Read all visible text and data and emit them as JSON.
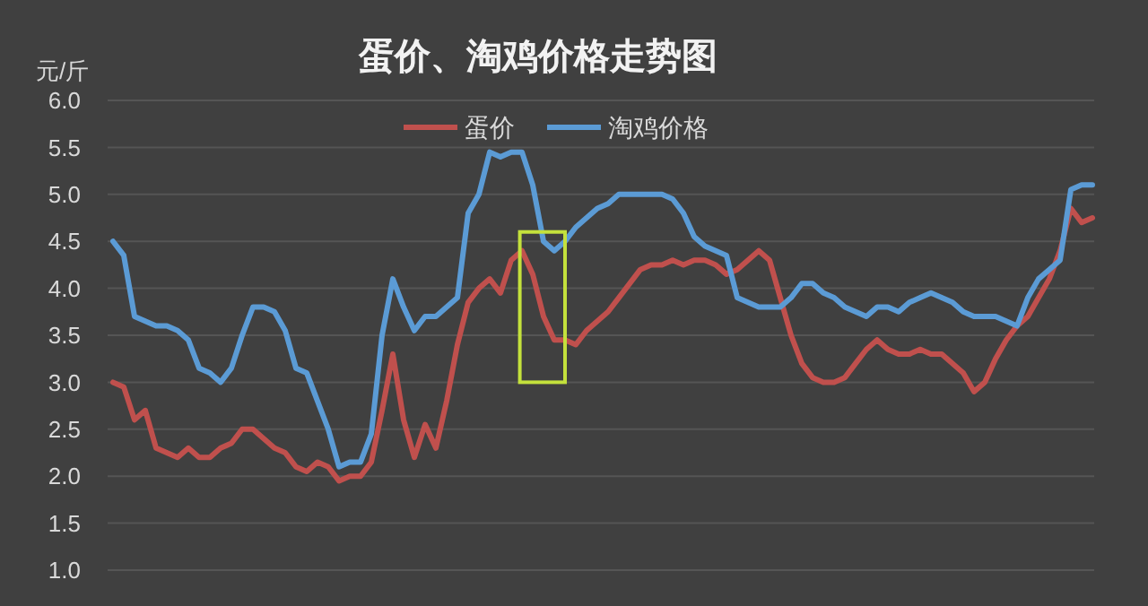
{
  "chart_data": {
    "type": "line",
    "title": "蛋价、淘鸡价格走势图",
    "ylabel": "元/斤",
    "categories": [
      null,
      null,
      null,
      null,
      null,
      null,
      null,
      null,
      null,
      null,
      null,
      null,
      null,
      null,
      null,
      null,
      null,
      null,
      null,
      null,
      null,
      null,
      null,
      null,
      null,
      null,
      null,
      null,
      null,
      null,
      null,
      null,
      null,
      null,
      null,
      null,
      null,
      null,
      null,
      null,
      null,
      null,
      null,
      null,
      null,
      null,
      null,
      null,
      null,
      null,
      null,
      null,
      null,
      null,
      null,
      null,
      null,
      null,
      null,
      null,
      null,
      null,
      null,
      null,
      null,
      null,
      null,
      null,
      null,
      null,
      null,
      null,
      null,
      null,
      null,
      null,
      null,
      null,
      null,
      null,
      null,
      null,
      null,
      null,
      null,
      null,
      null,
      null,
      null,
      null,
      null,
      null
    ],
    "series": [
      {
        "name": "蛋价",
        "color": "#c0504d",
        "values": [
          3.0,
          2.95,
          2.6,
          2.7,
          2.3,
          2.25,
          2.2,
          2.3,
          2.2,
          2.2,
          2.3,
          2.35,
          2.5,
          2.5,
          2.4,
          2.3,
          2.25,
          2.1,
          2.05,
          2.15,
          2.1,
          1.95,
          2.0,
          2.0,
          2.15,
          2.7,
          3.3,
          2.6,
          2.2,
          2.55,
          2.3,
          2.8,
          3.4,
          3.85,
          4.0,
          4.1,
          3.95,
          4.3,
          4.4,
          4.15,
          3.7,
          3.45,
          3.45,
          3.4,
          3.55,
          3.65,
          3.75,
          3.9,
          4.05,
          4.2,
          4.25,
          4.25,
          4.3,
          4.25,
          4.3,
          4.3,
          4.25,
          4.15,
          4.2,
          4.3,
          4.4,
          4.3,
          3.9,
          3.5,
          3.2,
          3.05,
          3.0,
          3.0,
          3.05,
          3.2,
          3.35,
          3.45,
          3.35,
          3.3,
          3.3,
          3.35,
          3.3,
          3.3,
          3.2,
          3.1,
          2.9,
          3.0,
          3.25,
          3.45,
          3.6,
          3.7,
          3.9,
          4.1,
          4.4,
          4.85,
          4.7,
          4.75
        ]
      },
      {
        "name": "淘鸡价格",
        "color": "#5b9bd5",
        "values": [
          4.5,
          4.35,
          3.7,
          3.65,
          3.6,
          3.6,
          3.55,
          3.45,
          3.15,
          3.1,
          3.0,
          3.15,
          3.5,
          3.8,
          3.8,
          3.75,
          3.55,
          3.15,
          3.1,
          2.8,
          2.5,
          2.1,
          2.15,
          2.15,
          2.45,
          3.5,
          4.1,
          3.8,
          3.55,
          3.7,
          3.7,
          3.8,
          3.9,
          4.8,
          5.0,
          5.45,
          5.4,
          5.45,
          5.45,
          5.1,
          4.5,
          4.4,
          4.5,
          4.65,
          4.75,
          4.85,
          4.9,
          5.0,
          5.0,
          5.0,
          5.0,
          5.0,
          4.95,
          4.8,
          4.55,
          4.45,
          4.4,
          4.35,
          3.9,
          3.85,
          3.8,
          3.8,
          3.8,
          3.9,
          4.05,
          4.05,
          3.95,
          3.9,
          3.8,
          3.75,
          3.7,
          3.8,
          3.8,
          3.75,
          3.85,
          3.9,
          3.95,
          3.9,
          3.85,
          3.75,
          3.7,
          3.7,
          3.7,
          3.65,
          3.6,
          3.9,
          4.1,
          4.2,
          4.3,
          5.05,
          5.1,
          5.1
        ]
      }
    ],
    "ylim": [
      1.0,
      6.0
    ],
    "yticks": [
      {
        "value": 1,
        "label": "1.0"
      },
      {
        "value": 1.5,
        "label": "1.5"
      },
      {
        "value": 2,
        "label": "2.0"
      },
      {
        "value": 2.5,
        "label": "2.5"
      },
      {
        "value": 3,
        "label": "3.0"
      },
      {
        "value": 3.5,
        "label": "3.5"
      },
      {
        "value": 4,
        "label": "4.0"
      },
      {
        "value": 4.5,
        "label": "4.5"
      },
      {
        "value": 5,
        "label": "5.0"
      },
      {
        "value": 5.5,
        "label": "5.5"
      },
      {
        "value": 6,
        "label": "6.0"
      }
    ],
    "grid": "y",
    "legend": "top",
    "tick_labels": "y",
    "line_style": "solid",
    "marker": "none"
  }
}
